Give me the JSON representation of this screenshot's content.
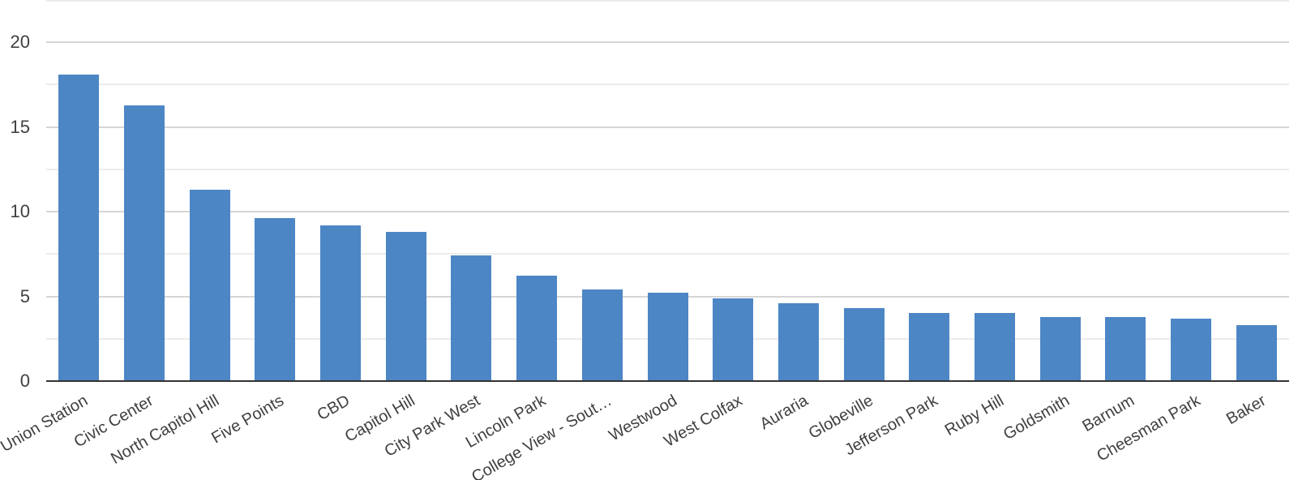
{
  "chart_data": {
    "type": "bar",
    "title": "",
    "xlabel": "",
    "ylabel": "",
    "categories": [
      "Union Station",
      "Civic Center",
      "North Capitol Hill",
      "Five Points",
      "CBD",
      "Capitol Hill",
      "City Park West",
      "Lincoln Park",
      "College View - Sout…",
      "Westwood",
      "West Colfax",
      "Auraria",
      "Globeville",
      "Jefferson Park",
      "Ruby Hill",
      "Goldsmith",
      "Barnum",
      "Cheesman Park",
      "Baker"
    ],
    "values": [
      18.1,
      16.3,
      11.3,
      9.6,
      9.2,
      8.8,
      7.4,
      6.2,
      5.4,
      5.2,
      4.9,
      4.6,
      4.3,
      4.0,
      4.0,
      3.8,
      3.8,
      3.7,
      3.3
    ],
    "ylim": [
      0,
      22.5
    ],
    "yticks": [
      0,
      5,
      10,
      15,
      20
    ],
    "ytick_labels": [
      "0",
      "5",
      "10",
      "15",
      "20"
    ],
    "minor_gridline_step": 2.5,
    "grid": true,
    "legend_position": "none",
    "x_label_angle_deg": -30
  },
  "style": {
    "bar_color": "#4d86c5",
    "grid_major_color": "#d6d6d6",
    "grid_minor_color": "#ececec",
    "axis_line_color": "#333333",
    "tick_label_color": "#404040",
    "background_color": "#ffffff"
  }
}
